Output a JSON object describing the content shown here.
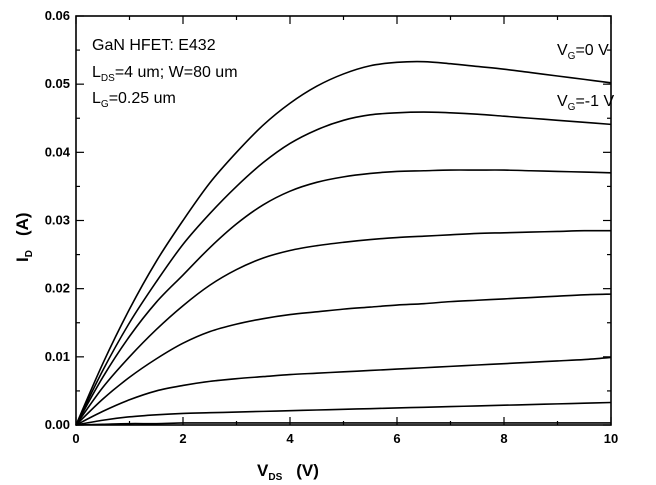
{
  "chart_data": {
    "type": "line",
    "xlim": [
      0,
      10
    ],
    "ylim": [
      0,
      0.06
    ],
    "x_ticks": [
      "0",
      "2",
      "4",
      "6",
      "8",
      "10"
    ],
    "y_ticks": [
      "0.00",
      "0.01",
      "0.02",
      "0.03",
      "0.04",
      "0.05",
      "0.06"
    ],
    "xlabel": {
      "main": "V",
      "sub": "DS",
      "unit": "(V)"
    },
    "ylabel": {
      "main": "I",
      "sub": "D",
      "unit": "(A)"
    },
    "annotations": {
      "device": "GaN HFET: E432",
      "ld_main": "L",
      "ld_sub": "DS",
      "ld_rest": "=4 um; W=80 um",
      "lg_main": "L",
      "lg_sub": "G",
      "lg_rest": "=0.25 um",
      "vg0_main": "V",
      "vg0_sub": "G",
      "vg0_rest": "=0 V",
      "vg1_main": "V",
      "vg1_sub": "G",
      "vg1_rest": "=-1 V"
    },
    "x": [
      0,
      0.5,
      1,
      1.5,
      2,
      2.5,
      3,
      3.5,
      4,
      4.5,
      5,
      5.5,
      6,
      6.5,
      7,
      7.5,
      8,
      8.5,
      9,
      9.5,
      10
    ],
    "series": [
      {
        "values": [
          0,
          0.009,
          0.017,
          0.024,
          0.03,
          0.0355,
          0.04,
          0.044,
          0.0472,
          0.0497,
          0.0515,
          0.0527,
          0.0532,
          0.0533,
          0.053,
          0.0526,
          0.0522,
          0.0517,
          0.0512,
          0.0507,
          0.0502
        ]
      },
      {
        "values": [
          0,
          0.008,
          0.015,
          0.021,
          0.0265,
          0.031,
          0.035,
          0.0385,
          0.0413,
          0.0433,
          0.0447,
          0.0455,
          0.0458,
          0.0459,
          0.0458,
          0.0456,
          0.0453,
          0.045,
          0.0447,
          0.0444,
          0.0441
        ]
      },
      {
        "values": [
          0,
          0.007,
          0.013,
          0.018,
          0.022,
          0.026,
          0.0295,
          0.0323,
          0.0343,
          0.0356,
          0.0364,
          0.0369,
          0.0372,
          0.0373,
          0.0374,
          0.0374,
          0.0374,
          0.0373,
          0.0372,
          0.0371,
          0.037
        ]
      },
      {
        "values": [
          0,
          0.0055,
          0.01,
          0.014,
          0.0175,
          0.0205,
          0.0228,
          0.0245,
          0.0256,
          0.0263,
          0.0268,
          0.0272,
          0.0275,
          0.0277,
          0.0279,
          0.0281,
          0.0282,
          0.0283,
          0.0284,
          0.0285,
          0.0285
        ]
      },
      {
        "values": [
          0,
          0.0038,
          0.007,
          0.0097,
          0.012,
          0.0137,
          0.0148,
          0.0156,
          0.0162,
          0.0166,
          0.017,
          0.0173,
          0.0176,
          0.0178,
          0.0181,
          0.0183,
          0.0185,
          0.0187,
          0.0189,
          0.0191,
          0.0192
        ]
      },
      {
        "values": [
          0,
          0.002,
          0.0037,
          0.005,
          0.0058,
          0.0064,
          0.0068,
          0.0071,
          0.0074,
          0.0076,
          0.0078,
          0.008,
          0.0082,
          0.0084,
          0.0086,
          0.0088,
          0.009,
          0.0092,
          0.0094,
          0.0096,
          0.0099
        ]
      },
      {
        "values": [
          0,
          0.0007,
          0.0012,
          0.0015,
          0.0017,
          0.0018,
          0.0019,
          0.002,
          0.0021,
          0.0022,
          0.0023,
          0.0024,
          0.0025,
          0.0026,
          0.0027,
          0.0028,
          0.0029,
          0.003,
          0.0031,
          0.0032,
          0.0033
        ]
      },
      {
        "values": [
          0,
          0.0001,
          0.0002,
          0.0002,
          0.0003,
          0.0003,
          0.0003,
          0.0003,
          0.0003,
          0.0003,
          0.0003,
          0.0003,
          0.0003,
          0.0003,
          0.0003,
          0.0003,
          0.0003,
          0.0003,
          0.0003,
          0.0003,
          0.0003
        ]
      }
    ]
  }
}
